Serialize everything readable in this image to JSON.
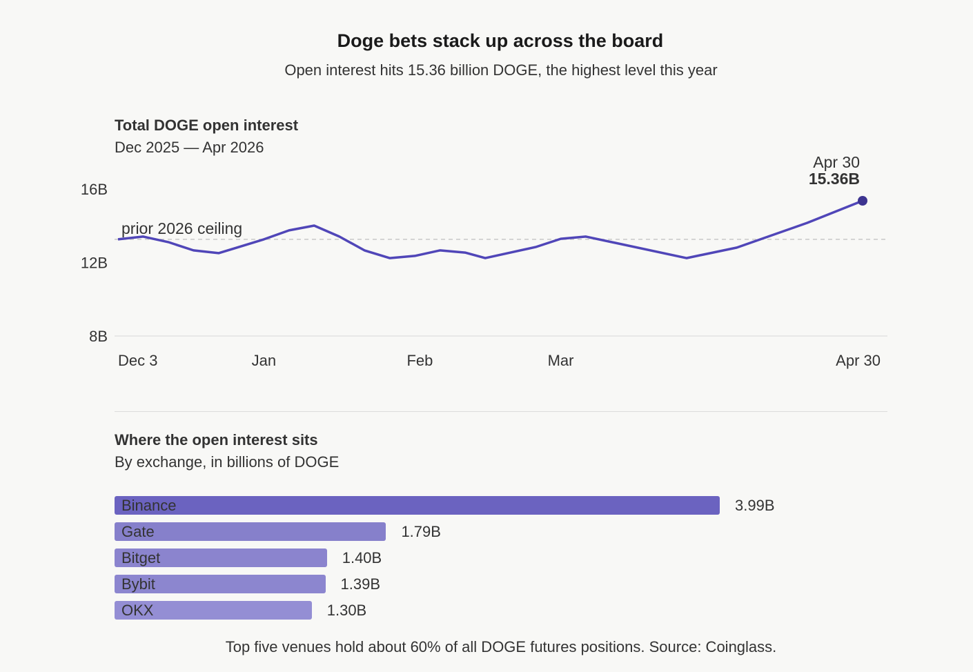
{
  "header": {
    "title": "Doge bets stack up across the board",
    "subtitle": "Open interest hits 15.36 billion DOGE, the highest level this year"
  },
  "colors": {
    "background": "#f8f8f6",
    "line": "#5046b8",
    "endpoint": "#3d3490",
    "reference_line": "#c8c8c8"
  },
  "chart_data": [
    {
      "type": "line",
      "title": "Total DOGE open interest",
      "subtitle": "Dec 2025 — Apr 2026",
      "xlabel": "",
      "ylabel": "",
      "ylim": [
        8,
        16
      ],
      "yticks": [
        8,
        12,
        16
      ],
      "ytick_labels": [
        "8B",
        "12B",
        "16B"
      ],
      "xlim": [
        "2025-12-03",
        "2026-04-30"
      ],
      "xticks": [
        "2025-12-03",
        "2026-01-01",
        "2026-02-01",
        "2026-03-01",
        "2026-04-30"
      ],
      "xtick_labels": [
        "Dec 3",
        "Jan",
        "Feb",
        "Mar",
        "Apr 30"
      ],
      "grid": false,
      "reference_line": {
        "value": 13.26,
        "label": "prior 2026 ceiling"
      },
      "annotation": {
        "date_label": "Apr 30",
        "value_label": "15.36B"
      },
      "series": [
        {
          "x": [
            "2025-12-03",
            "2025-12-08",
            "2025-12-13",
            "2025-12-18",
            "2025-12-23",
            "2025-12-27",
            "2026-01-01",
            "2026-01-06",
            "2026-01-11",
            "2026-01-16",
            "2026-01-21",
            "2026-01-26",
            "2026-01-31",
            "2026-02-05",
            "2026-02-10",
            "2026-02-14",
            "2026-02-19",
            "2026-02-24",
            "2026-03-01",
            "2026-03-06",
            "2026-03-26",
            "2026-04-05",
            "2026-04-19",
            "2026-04-30"
          ],
          "values": [
            13.26,
            13.41,
            13.11,
            12.66,
            12.51,
            12.84,
            13.26,
            13.75,
            14.01,
            13.41,
            12.66,
            12.24,
            12.36,
            12.66,
            12.54,
            12.24,
            12.54,
            12.84,
            13.29,
            13.41,
            12.24,
            12.81,
            14.16,
            15.36
          ]
        }
      ]
    },
    {
      "type": "bar",
      "orientation": "horizontal",
      "title": "Where the open interest sits",
      "subtitle": "By exchange, in billions of DOGE",
      "categories": [
        "Binance",
        "Gate",
        "Bitget",
        "Bybit",
        "OKX"
      ],
      "values": [
        3.99,
        1.79,
        1.4,
        1.39,
        1.3
      ],
      "value_labels": [
        "3.99B",
        "1.79B",
        "1.40B",
        "1.39B",
        "1.30B"
      ],
      "colors": [
        "#6b63c0",
        "#8680cb",
        "#8b84ce",
        "#8c86cf",
        "#948ed4"
      ],
      "xlim": [
        0,
        5.1
      ]
    }
  ],
  "footnote": "Top five venues hold about 60% of all DOGE futures positions. Source: Coinglass."
}
